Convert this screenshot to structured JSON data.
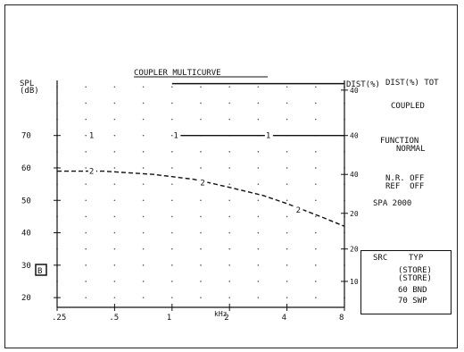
{
  "chart_data": {
    "type": "line",
    "title": "COUPLER MULTICURVE",
    "ylabel_line1": "SPL",
    "ylabel_line2": "(dB)",
    "xlabel": "kHz",
    "x_ticks": [
      ".25",
      ".5",
      "1",
      "2",
      "4",
      "8"
    ],
    "x_tick_values": [
      0.25,
      0.5,
      1,
      2,
      4,
      8
    ],
    "y_ticks": [
      "70",
      "60",
      "50",
      "40",
      "30",
      "20"
    ],
    "y_tick_values": [
      70,
      60,
      50,
      40,
      30,
      20
    ],
    "ylim": [
      17,
      87
    ],
    "x_scale": "log",
    "grid": "dotted",
    "right_axis_label": "DIST(%)",
    "right_axis_ticks": [
      "40",
      "40",
      "40",
      "20",
      "20",
      "10"
    ],
    "series": [
      {
        "name": "1",
        "style": "solid",
        "x": [
          1,
          8
        ],
        "y": [
          70,
          70
        ],
        "markers": [
          {
            "x": 0.38,
            "y": 70
          },
          {
            "x": 1.05,
            "y": 70
          },
          {
            "x": 3.2,
            "y": 70
          }
        ]
      },
      {
        "name": "2",
        "style": "dashed",
        "x": [
          0.25,
          0.44,
          0.8,
          1.3,
          2,
          3,
          4,
          6,
          8
        ],
        "y": [
          59,
          59,
          58,
          56.5,
          54,
          51.5,
          49,
          45,
          42
        ],
        "markers": [
          {
            "x": 0.38,
            "y": 59
          },
          {
            "x": 1.45,
            "y": 55.5
          },
          {
            "x": 4.6,
            "y": 47
          }
        ]
      }
    ],
    "top_right_line": {
      "x": [
        1,
        8
      ],
      "y": [
        86,
        86
      ]
    }
  },
  "panel": {
    "header": "DIST(%) TOT",
    "coupled": "COUPLED",
    "function_label": "FUNCTION",
    "function_value": "NORMAL",
    "nr": "N.R. OFF",
    "ref": "REF  OFF",
    "spa": "SPA 2000",
    "legend": [
      {
        "label": "SRC",
        "value": "TYP",
        "row": "header"
      },
      {
        "label": "",
        "value": "(STORE)",
        "row": "1"
      },
      {
        "label": "",
        "value": "(STORE)",
        "row": "2"
      },
      {
        "label": "",
        "value": "60 BND",
        "row": "3"
      },
      {
        "label": "",
        "value": "70 SWP",
        "row": "4"
      }
    ]
  },
  "box_marker": "B",
  "colors": {
    "ink": "#111111",
    "background": "#ffffff"
  }
}
